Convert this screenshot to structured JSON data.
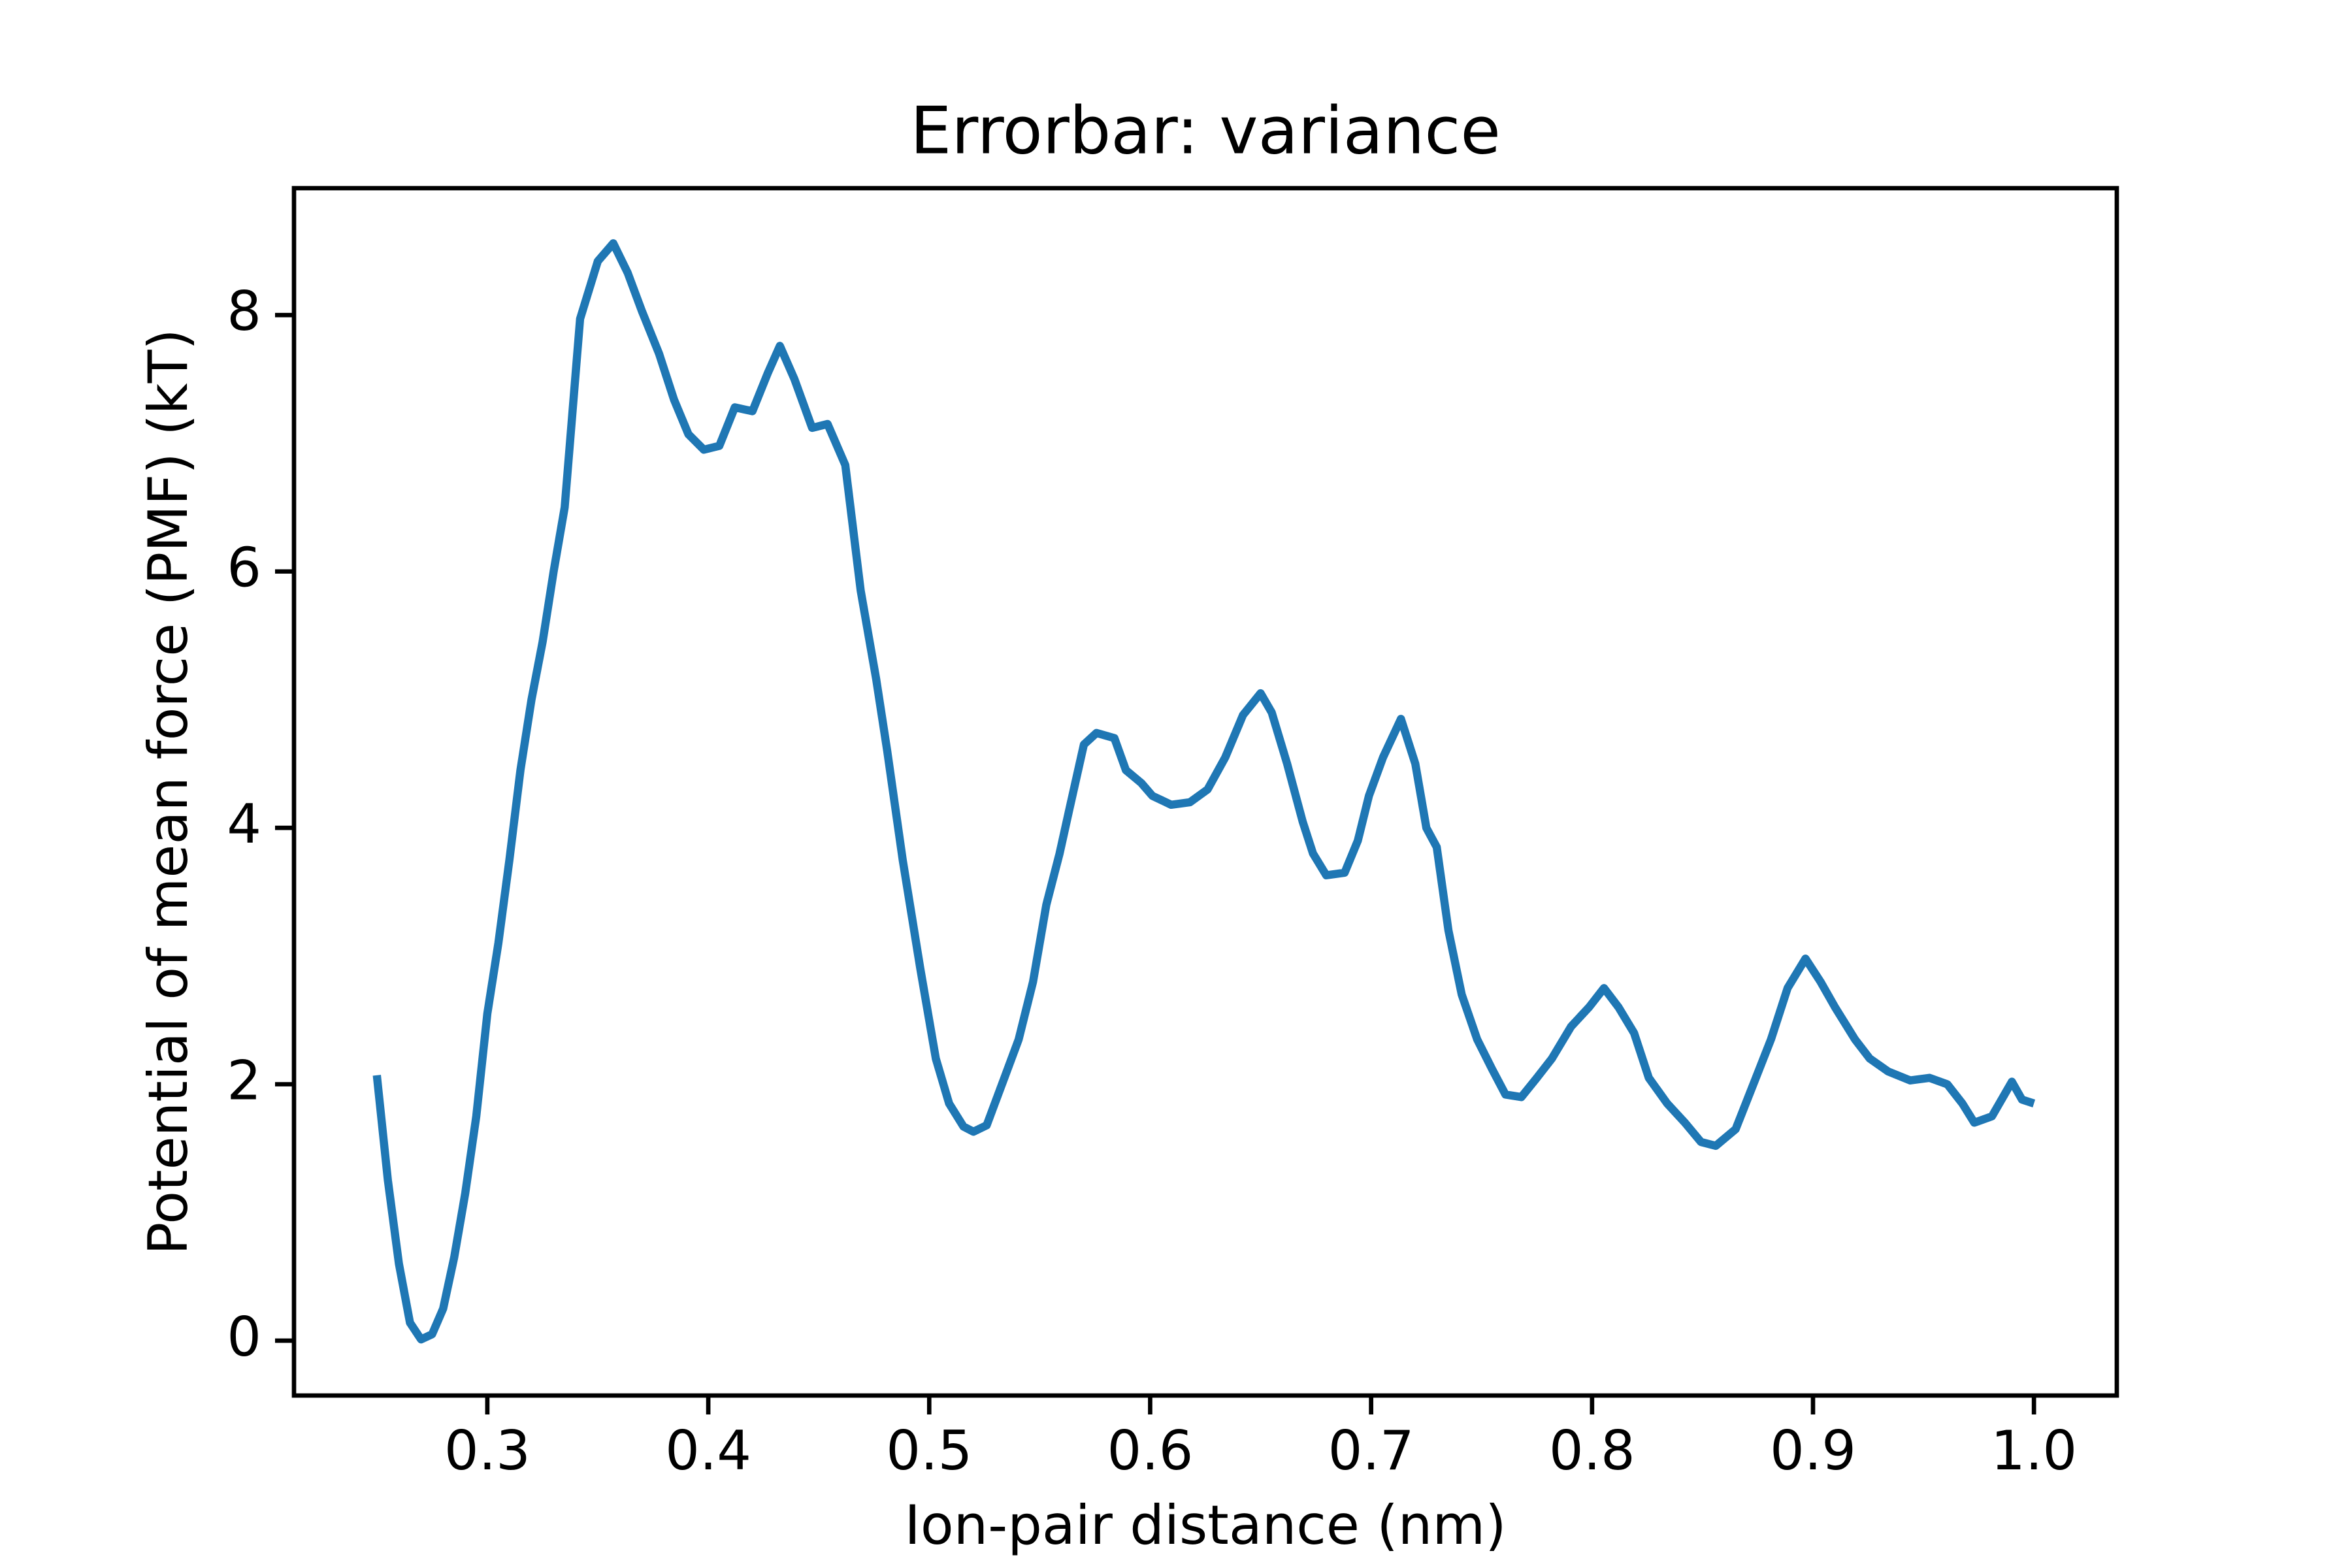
{
  "chart_data": {
    "type": "line",
    "title": "Errorbar: variance",
    "xlabel": "Ion-pair distance (nm)",
    "ylabel": "Potential of mean force (PMF) (kT)",
    "x": [
      0.25,
      0.255,
      0.26,
      0.265,
      0.27,
      0.275,
      0.28,
      0.285,
      0.29,
      0.295,
      0.3,
      0.305,
      0.31,
      0.315,
      0.32,
      0.325,
      0.33,
      0.335,
      0.342,
      0.35,
      0.357,
      0.3635,
      0.37,
      0.3777,
      0.3845,
      0.391,
      0.398,
      0.405,
      0.412,
      0.42,
      0.427,
      0.4324,
      0.439,
      0.447,
      0.454,
      0.462,
      0.469,
      0.476,
      0.481,
      0.488,
      0.496,
      0.503,
      0.509,
      0.5155,
      0.52,
      0.526,
      0.534,
      0.5405,
      0.547,
      0.553,
      0.559,
      0.5635,
      0.57,
      0.5757,
      0.5838,
      0.589,
      0.596,
      0.601,
      0.6095,
      0.618,
      0.626,
      0.634,
      0.642,
      0.65,
      0.655,
      0.662,
      0.669,
      0.6737,
      0.6797,
      0.688,
      0.694,
      0.699,
      0.7054,
      0.7135,
      0.72,
      0.725,
      0.7297,
      0.735,
      0.741,
      0.748,
      0.7547,
      0.7608,
      0.768,
      0.775,
      0.7818,
      0.7905,
      0.7986,
      0.8054,
      0.812,
      0.819,
      0.8257,
      0.834,
      0.842,
      0.8493,
      0.856,
      0.865,
      0.873,
      0.881,
      0.8885,
      0.8966,
      0.9034,
      0.91,
      0.919,
      0.9257,
      0.934,
      0.944,
      0.9527,
      0.9608,
      0.9676,
      0.973,
      0.981,
      0.99,
      0.9946,
      1.0
    ],
    "series": [
      {
        "color": "#1f77b4",
        "values": [
          2.07,
          1.25,
          0.6,
          0.14,
          0.01,
          0.05,
          0.25,
          0.65,
          1.15,
          1.75,
          2.55,
          3.1,
          3.75,
          4.45,
          5.0,
          5.45,
          6.0,
          6.5,
          7.97,
          8.42,
          8.56,
          8.33,
          8.03,
          7.7,
          7.34,
          7.07,
          6.95,
          6.98,
          7.28,
          7.25,
          7.55,
          7.76,
          7.5,
          7.12,
          7.15,
          6.83,
          5.85,
          5.16,
          4.6,
          3.75,
          2.9,
          2.2,
          1.85,
          1.67,
          1.63,
          1.68,
          2.05,
          2.35,
          2.8,
          3.4,
          3.8,
          4.15,
          4.65,
          4.74,
          4.7,
          4.45,
          4.35,
          4.25,
          4.18,
          4.2,
          4.3,
          4.55,
          4.88,
          5.05,
          4.9,
          4.5,
          4.05,
          3.8,
          3.63,
          3.65,
          3.9,
          4.25,
          4.55,
          4.85,
          4.5,
          4.0,
          3.85,
          3.2,
          2.7,
          2.35,
          2.12,
          1.92,
          1.9,
          2.05,
          2.2,
          2.45,
          2.6,
          2.75,
          2.6,
          2.4,
          2.05,
          1.85,
          1.7,
          1.55,
          1.52,
          1.65,
          2.0,
          2.35,
          2.75,
          2.98,
          2.8,
          2.6,
          2.35,
          2.2,
          2.1,
          2.03,
          2.05,
          2.0,
          1.85,
          1.7,
          1.75,
          2.02,
          1.88,
          1.85
        ]
      }
    ],
    "xlim": [
      0.2125,
      1.0375
    ],
    "ylim": [
      -0.428,
      8.99
    ],
    "xticks": [
      0.3,
      0.4,
      0.5,
      0.6,
      0.7,
      0.8,
      0.9,
      {
        "value": 1.0,
        "label": "1.0"
      }
    ],
    "yticks": [
      0,
      2,
      4,
      6,
      8
    ]
  }
}
